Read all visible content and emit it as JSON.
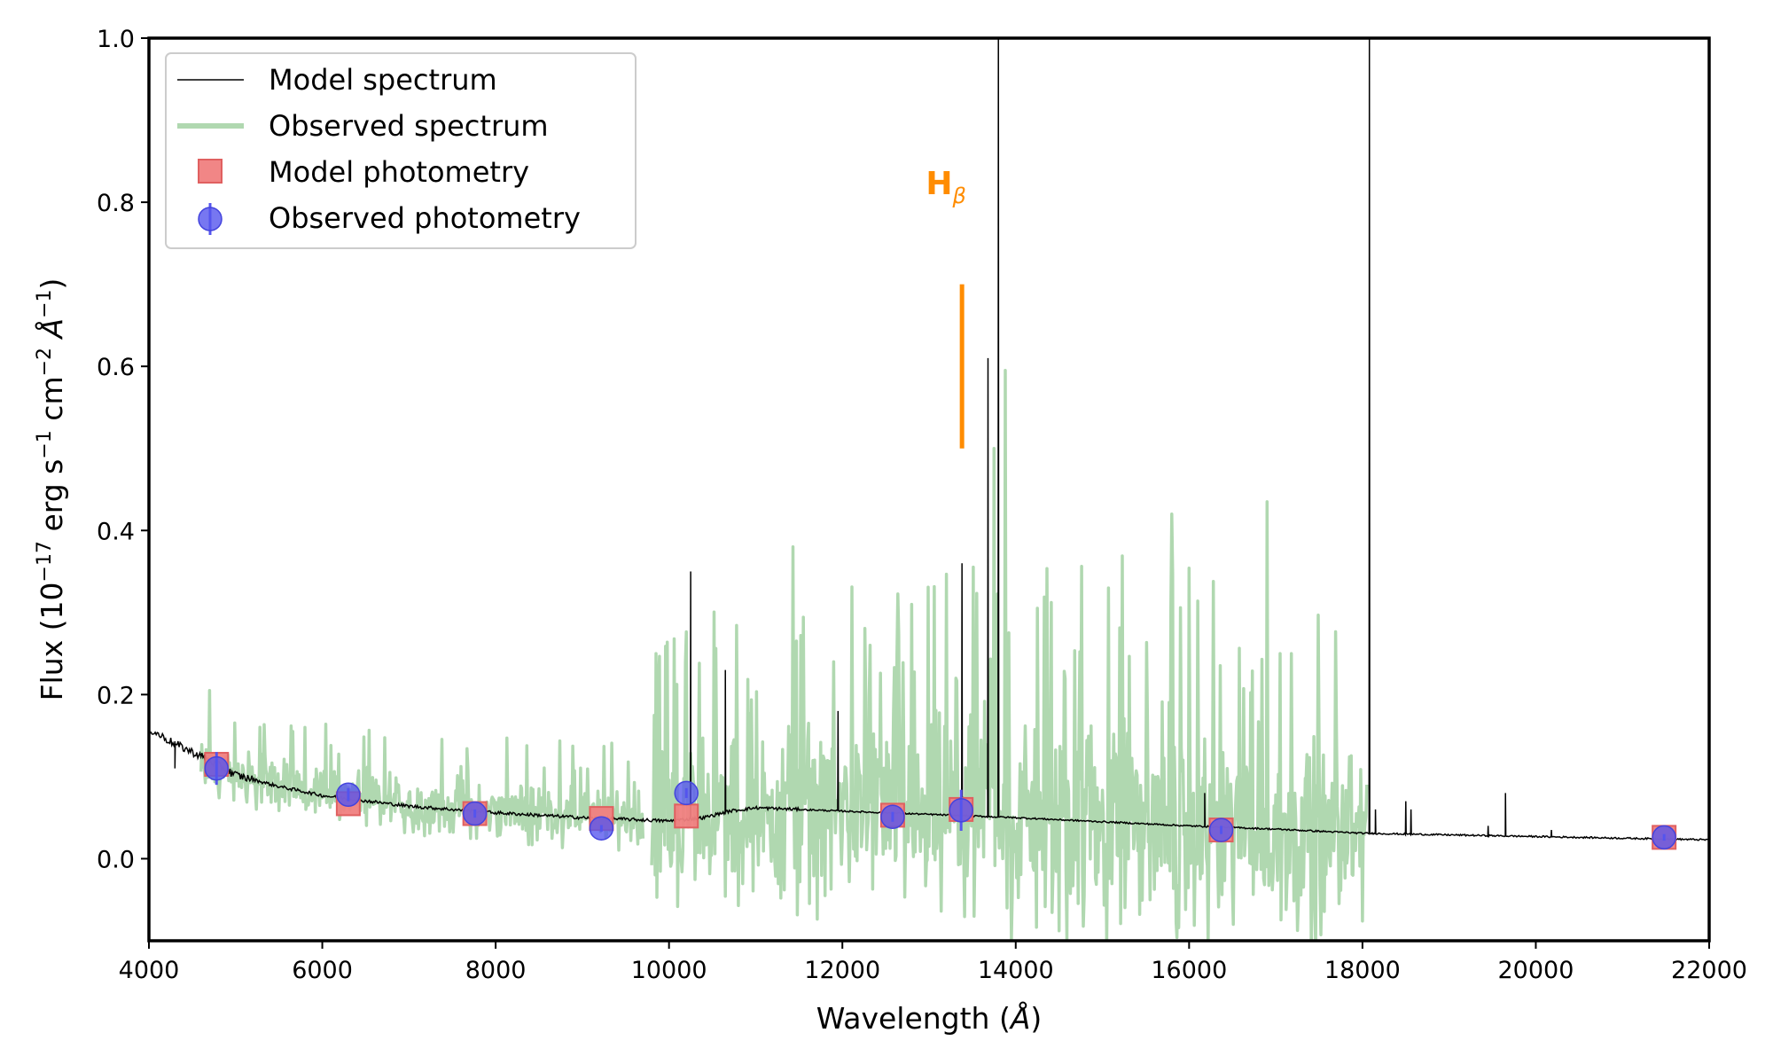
{
  "chart_data": {
    "type": "line",
    "title": "",
    "xlabel": "Wavelength (",
    "xlabel_unit": "Å",
    "ylabel_prefix": "Flux (10",
    "ylabel_exp": "−17",
    "ylabel_mid": " erg s",
    "ylabel_exp2": "−1",
    "ylabel_mid2": " cm",
    "ylabel_exp3": "−2",
    "ylabel_unit": "Å",
    "ylabel_exp4": "−1",
    "xlim": [
      4000,
      22000
    ],
    "ylim": [
      -0.1,
      1.0
    ],
    "x_ticks": [
      4000,
      6000,
      8000,
      10000,
      12000,
      14000,
      16000,
      18000,
      20000,
      22000
    ],
    "y_ticks": [
      0.0,
      0.2,
      0.4,
      0.6,
      0.8,
      1.0
    ],
    "y_tick_labels": [
      "0.0",
      "0.2",
      "0.4",
      "0.6",
      "0.8",
      "1.0"
    ],
    "legend": {
      "position": "top-left",
      "entries": [
        {
          "label": "Model spectrum",
          "marker": "line",
          "color": "#000000"
        },
        {
          "label": "Observed spectrum",
          "marker": "thick-line",
          "color": "#b0d8b0"
        },
        {
          "label": "Model photometry",
          "marker": "square",
          "color": "#f08080"
        },
        {
          "label": "Observed photometry",
          "marker": "circle-errorbar",
          "color": "#5555ee"
        }
      ]
    },
    "annotation": {
      "label": "H",
      "sub": "β",
      "x": 13380,
      "y_text": 0.81,
      "line_y": [
        0.5,
        0.7
      ],
      "color": "#ff8c00"
    },
    "series": [
      {
        "name": "Model spectrum",
        "color": "#000000",
        "continuum": [
          [
            4000,
            0.158
          ],
          [
            4300,
            0.14
          ],
          [
            4600,
            0.125
          ],
          [
            5000,
            0.102
          ],
          [
            5500,
            0.088
          ],
          [
            6000,
            0.077
          ],
          [
            7000,
            0.064
          ],
          [
            8000,
            0.056
          ],
          [
            9000,
            0.05
          ],
          [
            10000,
            0.046
          ],
          [
            10400,
            0.05
          ],
          [
            10700,
            0.058
          ],
          [
            11000,
            0.062
          ],
          [
            11500,
            0.06
          ],
          [
            12000,
            0.058
          ],
          [
            13000,
            0.054
          ],
          [
            14000,
            0.05
          ],
          [
            15000,
            0.045
          ],
          [
            16000,
            0.04
          ],
          [
            17000,
            0.036
          ],
          [
            18000,
            0.031
          ],
          [
            19000,
            0.029
          ],
          [
            20000,
            0.027
          ],
          [
            21000,
            0.025
          ],
          [
            22000,
            0.023
          ]
        ],
        "emission_lines": [
          [
            4300,
            0.11
          ],
          [
            10250,
            0.35
          ],
          [
            10650,
            0.23
          ],
          [
            11950,
            0.18
          ],
          [
            13380,
            0.36
          ],
          [
            13680,
            0.61
          ],
          [
            13800,
            1.0
          ],
          [
            16180,
            0.08
          ],
          [
            18080,
            1.0
          ],
          [
            18150,
            0.06
          ],
          [
            18500,
            0.07
          ],
          [
            18560,
            0.06
          ],
          [
            19450,
            0.04
          ],
          [
            19650,
            0.08
          ],
          [
            20180,
            0.035
          ]
        ]
      },
      {
        "name": "Observed spectrum",
        "color": "#b0d8b0",
        "segments": [
          [
            4600,
            9700
          ],
          [
            9800,
            18050
          ]
        ],
        "continuum": [
          [
            4600,
            0.11
          ],
          [
            5500,
            0.088
          ],
          [
            7000,
            0.065
          ],
          [
            8000,
            0.056
          ],
          [
            9700,
            0.05
          ],
          [
            9800,
            0.045
          ],
          [
            11000,
            0.06
          ],
          [
            12000,
            0.055
          ],
          [
            13000,
            0.05
          ],
          [
            14000,
            0.045
          ],
          [
            15000,
            0.04
          ],
          [
            16000,
            0.036
          ],
          [
            17000,
            0.032
          ],
          [
            18050,
            0.03
          ]
        ],
        "noise_knots": [
          [
            4600,
            0.04
          ],
          [
            9600,
            0.05
          ],
          [
            9800,
            0.12
          ],
          [
            13000,
            0.15
          ],
          [
            14000,
            0.18
          ],
          [
            16000,
            0.17
          ],
          [
            18050,
            0.15
          ]
        ],
        "peaks": [
          [
            4700,
            0.205
          ],
          [
            5150,
            0.13
          ],
          [
            5800,
            0.16
          ],
          [
            11430,
            0.38
          ],
          [
            12320,
            0.26
          ],
          [
            12800,
            0.31
          ],
          [
            13750,
            0.5
          ],
          [
            13880,
            0.595
          ],
          [
            15070,
            0.33
          ],
          [
            15800,
            0.42
          ],
          [
            16900,
            0.435
          ],
          [
            17050,
            0.25
          ],
          [
            17180,
            0.25
          ]
        ],
        "dips": [
          [
            11800,
            -0.045
          ],
          [
            13900,
            -0.06
          ],
          [
            14200,
            -0.01
          ]
        ]
      }
    ],
    "photometry": {
      "model": {
        "name": "Model photometry",
        "color": "#f08080",
        "x": [
          4780,
          6300,
          7760,
          9220,
          10200,
          12580,
          13370,
          16370,
          21480
        ],
        "y": [
          0.115,
          0.067,
          0.055,
          0.049,
          0.052,
          0.053,
          0.06,
          0.035,
          0.026
        ]
      },
      "observed": {
        "name": "Observed photometry",
        "color": "#5555ee",
        "x": [
          4780,
          6300,
          7760,
          9220,
          10200,
          12580,
          13370,
          16370,
          21480
        ],
        "y": [
          0.11,
          0.078,
          0.055,
          0.037,
          0.08,
          0.051,
          0.059,
          0.035,
          0.026
        ],
        "err": [
          0.02,
          0.008,
          0.005,
          0.004,
          0.006,
          0.006,
          0.025,
          0.005,
          0.004
        ]
      }
    }
  }
}
